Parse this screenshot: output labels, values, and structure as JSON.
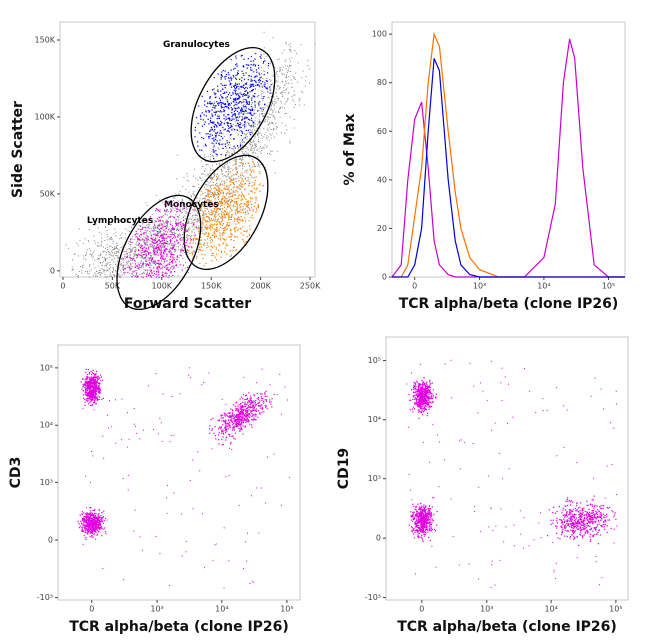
{
  "chart_data": [
    {
      "type": "scatter",
      "x_label": "Forward Scatter",
      "y_label": "Side Scatter",
      "xlim": [
        -3000,
        255000
      ],
      "ylim": [
        -4000,
        161700
      ],
      "xticks": [
        0,
        {
          "value": 50000,
          "label": "50K"
        },
        {
          "value": 100000,
          "label": "100K"
        },
        {
          "value": 150000,
          "label": "150K"
        },
        {
          "value": 200000,
          "label": "200K"
        },
        {
          "value": 250000,
          "label": "250K"
        }
      ],
      "yticks": [
        0,
        {
          "value": 50000,
          "label": "50K"
        },
        {
          "value": 100000,
          "label": "100K"
        },
        {
          "value": 150000,
          "label": "150K"
        }
      ],
      "series": [
        {
          "name": "Granulocytes",
          "color": "#0000ff",
          "x": [
            172000
          ],
          "y": [
            108000
          ]
        },
        {
          "name": "Monocytes",
          "color": "#ff8000",
          "x": [
            165000
          ],
          "y": [
            38000
          ]
        },
        {
          "name": "Lymphocytes",
          "color": "#e000e0",
          "x": [
            97000
          ],
          "y": [
            12000
          ]
        }
      ]
    },
    {
      "type": "line",
      "x_label": "TCR alpha/beta (clone IP26)",
      "y_label": "% of Max",
      "x_scale": "biexponential",
      "xlim": [
        -180,
        180000
      ],
      "ylim": [
        0,
        105
      ],
      "xticks": [
        0,
        {
          "value": 1000,
          "label": "10³"
        },
        {
          "value": 10000,
          "label": "10⁴"
        },
        {
          "value": 100000,
          "label": "10⁵"
        }
      ],
      "yticks": [
        0,
        20,
        40,
        60,
        80,
        100
      ],
      "x": [
        -180,
        -100,
        -50,
        0,
        50,
        100,
        150,
        200,
        300,
        400,
        500,
        700,
        1000,
        2000,
        5000,
        10000,
        15000,
        20000,
        25000,
        30000,
        40000,
        60000,
        100000,
        180000
      ],
      "series": [
        {
          "color": "#cc00cc",
          "values": [
            0,
            5,
            40,
            65,
            72,
            45,
            15,
            5,
            1,
            0,
            0,
            0,
            0,
            0,
            0,
            8,
            30,
            80,
            98,
            90,
            45,
            5,
            0,
            0
          ]
        },
        {
          "color": "#ff7000",
          "values": [
            0,
            0,
            5,
            25,
            45,
            80,
            100,
            95,
            60,
            35,
            20,
            8,
            3,
            0,
            0,
            0,
            0,
            0,
            0,
            0,
            0,
            0,
            0,
            0
          ]
        },
        {
          "color": "#0000dd",
          "values": [
            0,
            0,
            0,
            5,
            20,
            60,
            90,
            85,
            40,
            15,
            5,
            1,
            0,
            0,
            0,
            0,
            0,
            0,
            0,
            0,
            0,
            0,
            0,
            0
          ]
        }
      ]
    },
    {
      "type": "scatter",
      "x_label": "TCR alpha/beta (clone IP26)",
      "y_label": "CD3",
      "x_scale": "biexponential",
      "y_scale": "biexponential",
      "xlim": [
        -300,
        159000
      ],
      "ylim": [
        -1100,
        250000
      ],
      "xticks": [
        0,
        {
          "value": 1000,
          "label": "10³"
        },
        {
          "value": 10000,
          "label": "10⁴"
        },
        {
          "value": 100000,
          "label": "10⁵"
        }
      ],
      "yticks": [
        {
          "value": -1000,
          "label": "-10³"
        },
        0,
        {
          "value": 1000,
          "label": "10³"
        },
        {
          "value": 10000,
          "label": "10⁴"
        },
        {
          "value": 100000,
          "label": "10⁵"
        }
      ],
      "series": [
        {
          "color": "#e000e0",
          "x": [
            0,
            0,
            20000
          ],
          "y": [
            45000,
            150,
            15000
          ]
        }
      ]
    },
    {
      "type": "scatter",
      "x_label": "TCR alpha/beta (clone IP26)",
      "y_label": "CD19",
      "x_scale": "biexponential",
      "y_scale": "biexponential",
      "xlim": [
        -330,
        154000
      ],
      "ylim": [
        -1100,
        250000
      ],
      "xticks": [
        0,
        {
          "value": 1000,
          "label": "10³"
        },
        {
          "value": 10000,
          "label": "10⁴"
        },
        {
          "value": 100000,
          "label": "10⁵"
        }
      ],
      "yticks": [
        {
          "value": -1000,
          "label": "-10³"
        },
        0,
        {
          "value": 1000,
          "label": "10³"
        },
        {
          "value": 10000,
          "label": "10⁴"
        },
        {
          "value": 100000,
          "label": "10⁵"
        }
      ],
      "series": [
        {
          "color": "#e000e0",
          "x": [
            0,
            0,
            30000
          ],
          "y": [
            25000,
            150,
            150
          ]
        }
      ]
    }
  ]
}
